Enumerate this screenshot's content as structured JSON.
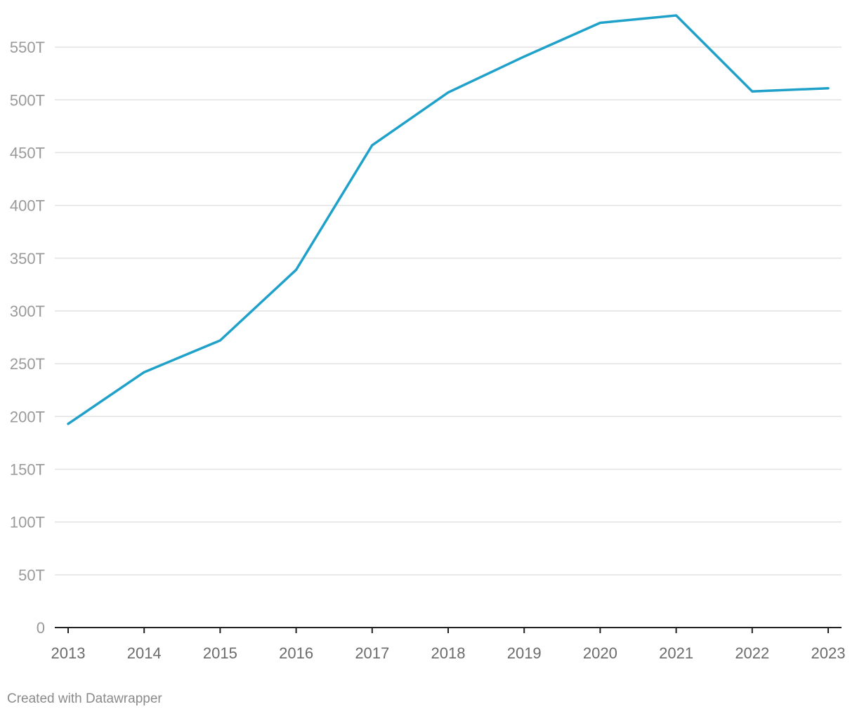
{
  "chart_data": {
    "type": "line",
    "x": [
      "2013",
      "2014",
      "2015",
      "2016",
      "2017",
      "2018",
      "2019",
      "2020",
      "2021",
      "2022",
      "2023"
    ],
    "series": [
      {
        "values": [
          193,
          242,
          272,
          339,
          457,
          507,
          541,
          573,
          580,
          508,
          511
        ],
        "color": "#1fa1c9"
      }
    ],
    "ylim": [
      0,
      575
    ],
    "y_ticks": [
      0,
      50,
      100,
      150,
      200,
      250,
      300,
      350,
      400,
      450,
      500,
      550
    ],
    "y_tick_labels": [
      "0",
      "50T",
      "100T",
      "150T",
      "200T",
      "250T",
      "300T",
      "350T",
      "400T",
      "450T",
      "500T",
      "550T"
    ],
    "x_tick_labels": [
      "2013",
      "2014",
      "2015",
      "2016",
      "2017",
      "2018",
      "2019",
      "2020",
      "2021",
      "2022",
      "2023"
    ],
    "grid": true,
    "legend": "none",
    "title": "",
    "xlabel": "",
    "ylabel": ""
  },
  "footer": {
    "credit": "Created with Datawrapper"
  }
}
